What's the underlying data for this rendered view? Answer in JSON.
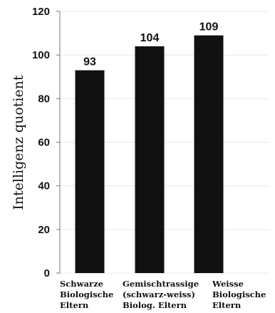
{
  "chart_data": {
    "type": "bar",
    "categories": [
      [
        "Schwarze",
        "Biologische",
        "Eltern"
      ],
      [
        "Gemischtrassige",
        "(schwarz-weiss)",
        "Biolog. Eltern"
      ],
      [
        "Weisse",
        "Biologische",
        "Eltern"
      ]
    ],
    "values": [
      93,
      104,
      109
    ],
    "value_labels": [
      "93",
      "104",
      "109"
    ],
    "ylabel": "Intelligenz quotient",
    "ylim": [
      0,
      120
    ],
    "yticks": [
      "0",
      "20",
      "40",
      "60",
      "80",
      "100",
      "120"
    ],
    "grid": false,
    "bar_color": "#111111"
  }
}
